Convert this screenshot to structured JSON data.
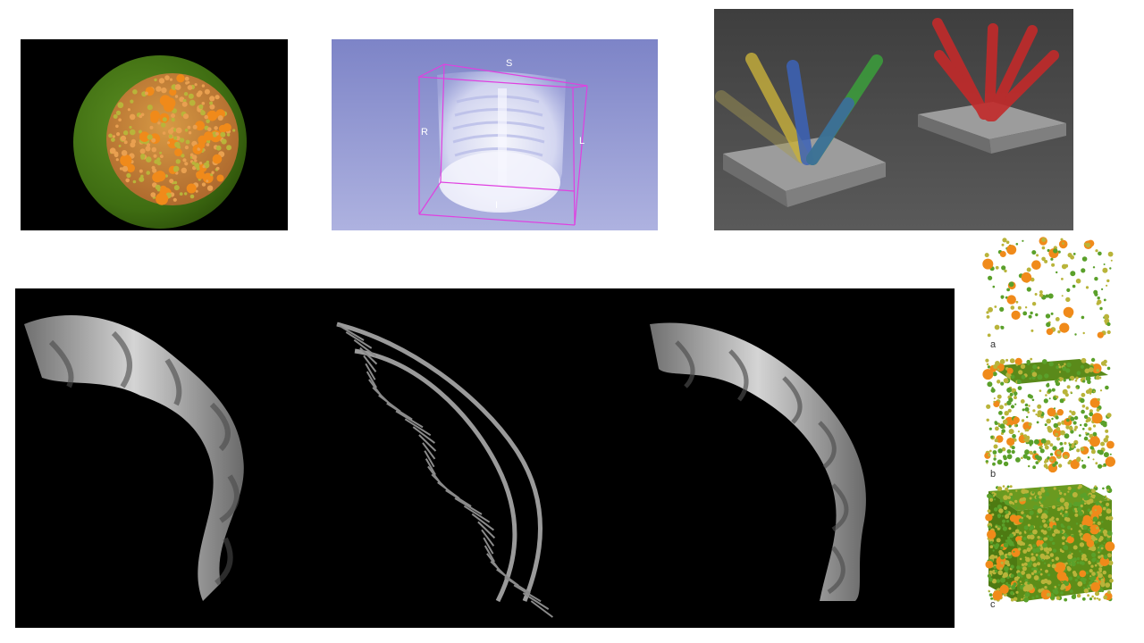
{
  "xray_view": {
    "orientation_labels": {
      "superior": "S",
      "inferior": "I",
      "right": "R",
      "left": "L"
    }
  },
  "particle_cubes": {
    "labels": [
      "a",
      "b",
      "c"
    ]
  },
  "colors": {
    "sphere_shell": "#3f6d12",
    "particles": "#f08a1a",
    "small_particles": "#b9b43a",
    "xray_background": "#8c93cf",
    "bounding_box": "#e040e0",
    "cylinder_yellow": "#c9b13b",
    "cylinder_blue": "#3c63b8",
    "cylinder_green": "#3c9a3c",
    "cylinder_red": "#c22a2a",
    "plate": "#9a9a9a",
    "dna_surface": "#b9b9b9"
  }
}
